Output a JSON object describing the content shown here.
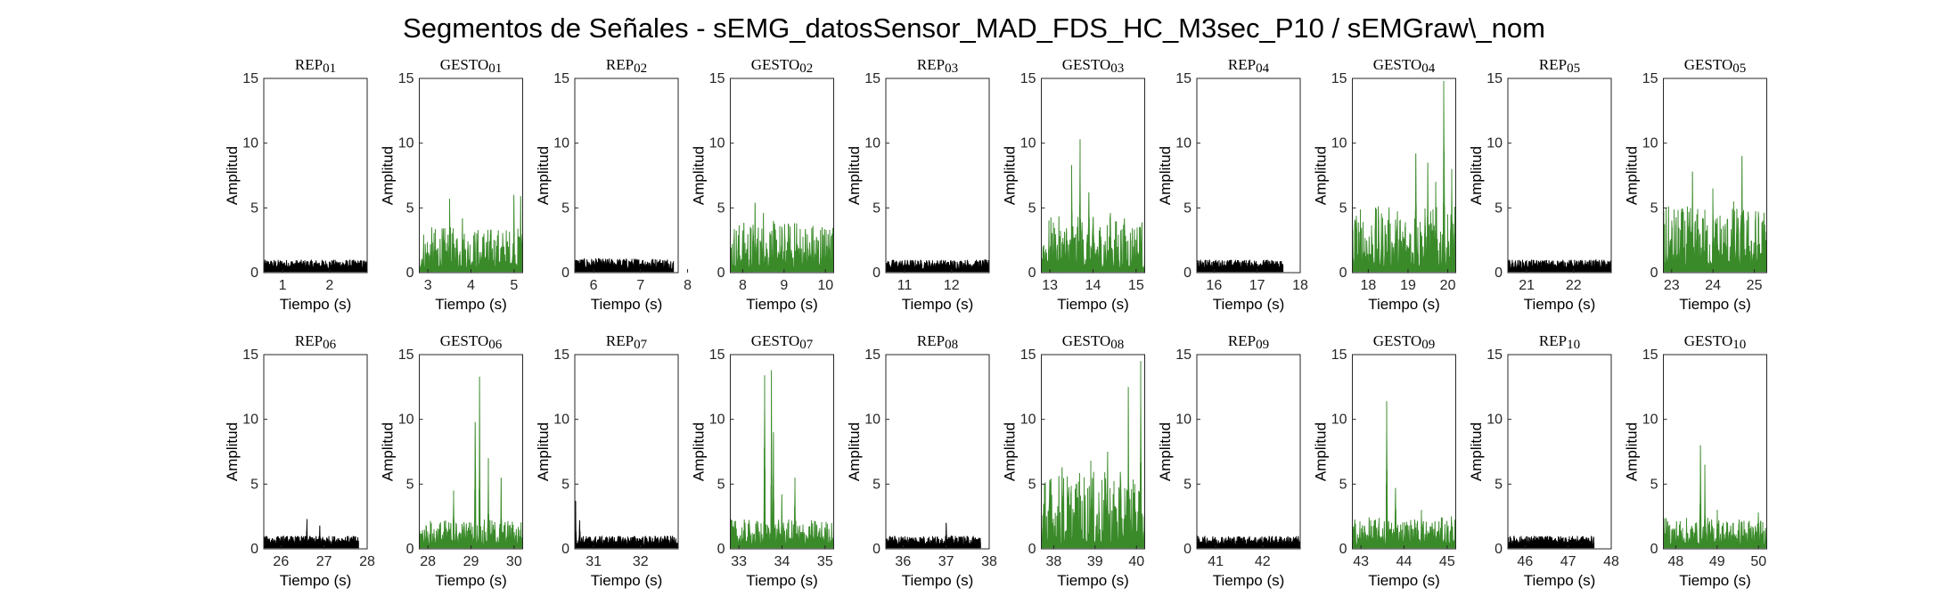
{
  "chart_data": {
    "type": "line",
    "title": "Segmentos de Señales - sEMG_datosSensor_MAD_FDS_HC_M3sec_P10 / sEMGraw\\_nom",
    "xlabel": "Tiempo (s)",
    "ylabel": "Amplitud",
    "ylim": [
      0,
      15
    ],
    "yticks": [
      "0",
      "5",
      "10",
      "15"
    ],
    "grid": false,
    "colors": {
      "rep": "#000000",
      "gesto": "#3a8a2a"
    },
    "subplots": [
      {
        "title": "REP_01",
        "kind": "rep",
        "xlim": [
          0.6,
          2.8
        ],
        "data_range": [
          0.6,
          2.8
        ],
        "xticks": [
          1,
          2
        ],
        "noise": 1.0,
        "peaks": []
      },
      {
        "title": "GESTO_01",
        "kind": "gesto",
        "xlim": [
          2.8,
          5.2
        ],
        "data_range": [
          2.8,
          5.2
        ],
        "xticks": [
          3,
          4,
          5
        ],
        "noise": 2.0,
        "peaks": [
          [
            3.5,
            5.7
          ],
          [
            3.8,
            4.2
          ],
          [
            5.0,
            6.0
          ],
          [
            5.15,
            5.9
          ],
          [
            4.3,
            3.0
          ]
        ]
      },
      {
        "title": "REP_02",
        "kind": "rep",
        "xlim": [
          5.6,
          7.8
        ],
        "data_range": [
          5.6,
          7.7
        ],
        "xticks": [
          6,
          7,
          8
        ],
        "noise": 1.1,
        "peaks": []
      },
      {
        "title": "GESTO_02",
        "kind": "gesto",
        "xlim": [
          7.7,
          10.2
        ],
        "data_range": [
          7.7,
          10.2
        ],
        "xticks": [
          8,
          9,
          10
        ],
        "noise": 2.3,
        "peaks": [
          [
            8.3,
            5.4
          ],
          [
            8.5,
            4.6
          ],
          [
            9.3,
            3.8
          ],
          [
            10.1,
            3.3
          ]
        ]
      },
      {
        "title": "REP_03",
        "kind": "rep",
        "xlim": [
          10.6,
          12.8
        ],
        "data_range": [
          10.6,
          12.8
        ],
        "xticks": [
          11,
          12
        ],
        "noise": 1.0,
        "peaks": []
      },
      {
        "title": "GESTO_03",
        "kind": "gesto",
        "xlim": [
          12.8,
          15.2
        ],
        "data_range": [
          12.8,
          15.2
        ],
        "xticks": [
          13,
          14,
          15
        ],
        "noise": 2.5,
        "peaks": [
          [
            13.5,
            8.3
          ],
          [
            13.7,
            10.3
          ],
          [
            13.9,
            6.2
          ],
          [
            14.4,
            4.6
          ],
          [
            15.1,
            3.5
          ]
        ]
      },
      {
        "title": "REP_04",
        "kind": "rep",
        "xlim": [
          15.6,
          18.0
        ],
        "data_range": [
          15.6,
          17.6
        ],
        "xticks": [
          16,
          17,
          18
        ],
        "noise": 1.0,
        "peaks": []
      },
      {
        "title": "GESTO_04",
        "kind": "gesto",
        "xlim": [
          17.6,
          20.2
        ],
        "data_range": [
          17.6,
          20.2
        ],
        "xticks": [
          18,
          19,
          20
        ],
        "noise": 3.0,
        "peaks": [
          [
            19.2,
            9.2
          ],
          [
            19.5,
            8.5
          ],
          [
            19.7,
            7.0
          ],
          [
            19.9,
            14.8
          ],
          [
            20.1,
            8.0
          ]
        ]
      },
      {
        "title": "REP_05",
        "kind": "rep",
        "xlim": [
          20.6,
          22.8
        ],
        "data_range": [
          20.6,
          22.8
        ],
        "xticks": [
          21,
          22
        ],
        "noise": 1.0,
        "peaks": []
      },
      {
        "title": "GESTO_05",
        "kind": "gesto",
        "xlim": [
          22.8,
          25.3
        ],
        "data_range": [
          22.8,
          25.3
        ],
        "xticks": [
          23,
          24,
          25
        ],
        "noise": 3.0,
        "peaks": [
          [
            23.5,
            7.8
          ],
          [
            24.0,
            6.5
          ],
          [
            24.7,
            9.0
          ],
          [
            24.5,
            5.5
          ],
          [
            25.2,
            4.0
          ]
        ]
      },
      {
        "title": "REP_06",
        "kind": "rep",
        "xlim": [
          25.6,
          28.0
        ],
        "data_range": [
          25.6,
          27.8
        ],
        "xticks": [
          26,
          27,
          28
        ],
        "noise": 1.0,
        "peaks": [
          [
            26.6,
            2.3
          ],
          [
            26.9,
            1.8
          ]
        ]
      },
      {
        "title": "GESTO_06",
        "kind": "gesto",
        "xlim": [
          27.8,
          30.2
        ],
        "data_range": [
          27.8,
          30.2
        ],
        "xticks": [
          28,
          29,
          30
        ],
        "noise": 1.2,
        "peaks": [
          [
            28.6,
            4.5
          ],
          [
            29.2,
            13.3
          ],
          [
            29.1,
            9.8
          ],
          [
            29.4,
            7.0
          ],
          [
            29.7,
            5.5
          ]
        ]
      },
      {
        "title": "REP_07",
        "kind": "rep",
        "xlim": [
          30.6,
          32.8
        ],
        "data_range": [
          30.6,
          32.8
        ],
        "xticks": [
          31,
          32
        ],
        "noise": 1.0,
        "peaks": [
          [
            30.62,
            3.7
          ],
          [
            30.7,
            2.2
          ]
        ]
      },
      {
        "title": "GESTO_07",
        "kind": "gesto",
        "xlim": [
          32.8,
          35.2
        ],
        "data_range": [
          32.8,
          35.2
        ],
        "xticks": [
          33,
          34,
          35
        ],
        "noise": 1.2,
        "peaks": [
          [
            33.6,
            13.4
          ],
          [
            33.75,
            13.8
          ],
          [
            33.8,
            9.0
          ],
          [
            34.3,
            5.5
          ],
          [
            34.0,
            4.2
          ]
        ]
      },
      {
        "title": "REP_08",
        "kind": "rep",
        "xlim": [
          35.6,
          38.0
        ],
        "data_range": [
          35.6,
          37.8
        ],
        "xticks": [
          36,
          37,
          38
        ],
        "noise": 1.0,
        "peaks": [
          [
            37.0,
            2.0
          ]
        ]
      },
      {
        "title": "GESTO_08",
        "kind": "gesto",
        "xlim": [
          37.7,
          40.2
        ],
        "data_range": [
          37.7,
          40.2
        ],
        "xticks": [
          38,
          39,
          40
        ],
        "noise": 3.5,
        "peaks": [
          [
            38.2,
            6.3
          ],
          [
            38.9,
            6.8
          ],
          [
            39.8,
            12.5
          ],
          [
            40.1,
            14.5
          ],
          [
            39.3,
            7.5
          ]
        ]
      },
      {
        "title": "REP_09",
        "kind": "rep",
        "xlim": [
          40.6,
          42.8
        ],
        "data_range": [
          40.6,
          42.8
        ],
        "xticks": [
          41,
          42
        ],
        "noise": 1.0,
        "peaks": []
      },
      {
        "title": "GESTO_09",
        "kind": "gesto",
        "xlim": [
          42.8,
          45.2
        ],
        "data_range": [
          42.8,
          45.2
        ],
        "xticks": [
          43,
          44,
          45
        ],
        "noise": 1.3,
        "peaks": [
          [
            43.6,
            11.4
          ],
          [
            43.8,
            4.7
          ],
          [
            44.4,
            3.0
          ],
          [
            45.1,
            2.5
          ]
        ]
      },
      {
        "title": "REP_10",
        "kind": "rep",
        "xlim": [
          45.6,
          48.0
        ],
        "data_range": [
          45.6,
          47.6
        ],
        "xticks": [
          46,
          47,
          48
        ],
        "noise": 1.0,
        "peaks": []
      },
      {
        "title": "GESTO_10",
        "kind": "gesto",
        "xlim": [
          47.7,
          50.2
        ],
        "data_range": [
          47.7,
          50.2
        ],
        "xticks": [
          48,
          49,
          50
        ],
        "noise": 1.3,
        "peaks": [
          [
            48.6,
            8.0
          ],
          [
            48.7,
            6.5
          ],
          [
            49.0,
            3.0
          ],
          [
            50.0,
            2.8
          ]
        ]
      }
    ]
  }
}
